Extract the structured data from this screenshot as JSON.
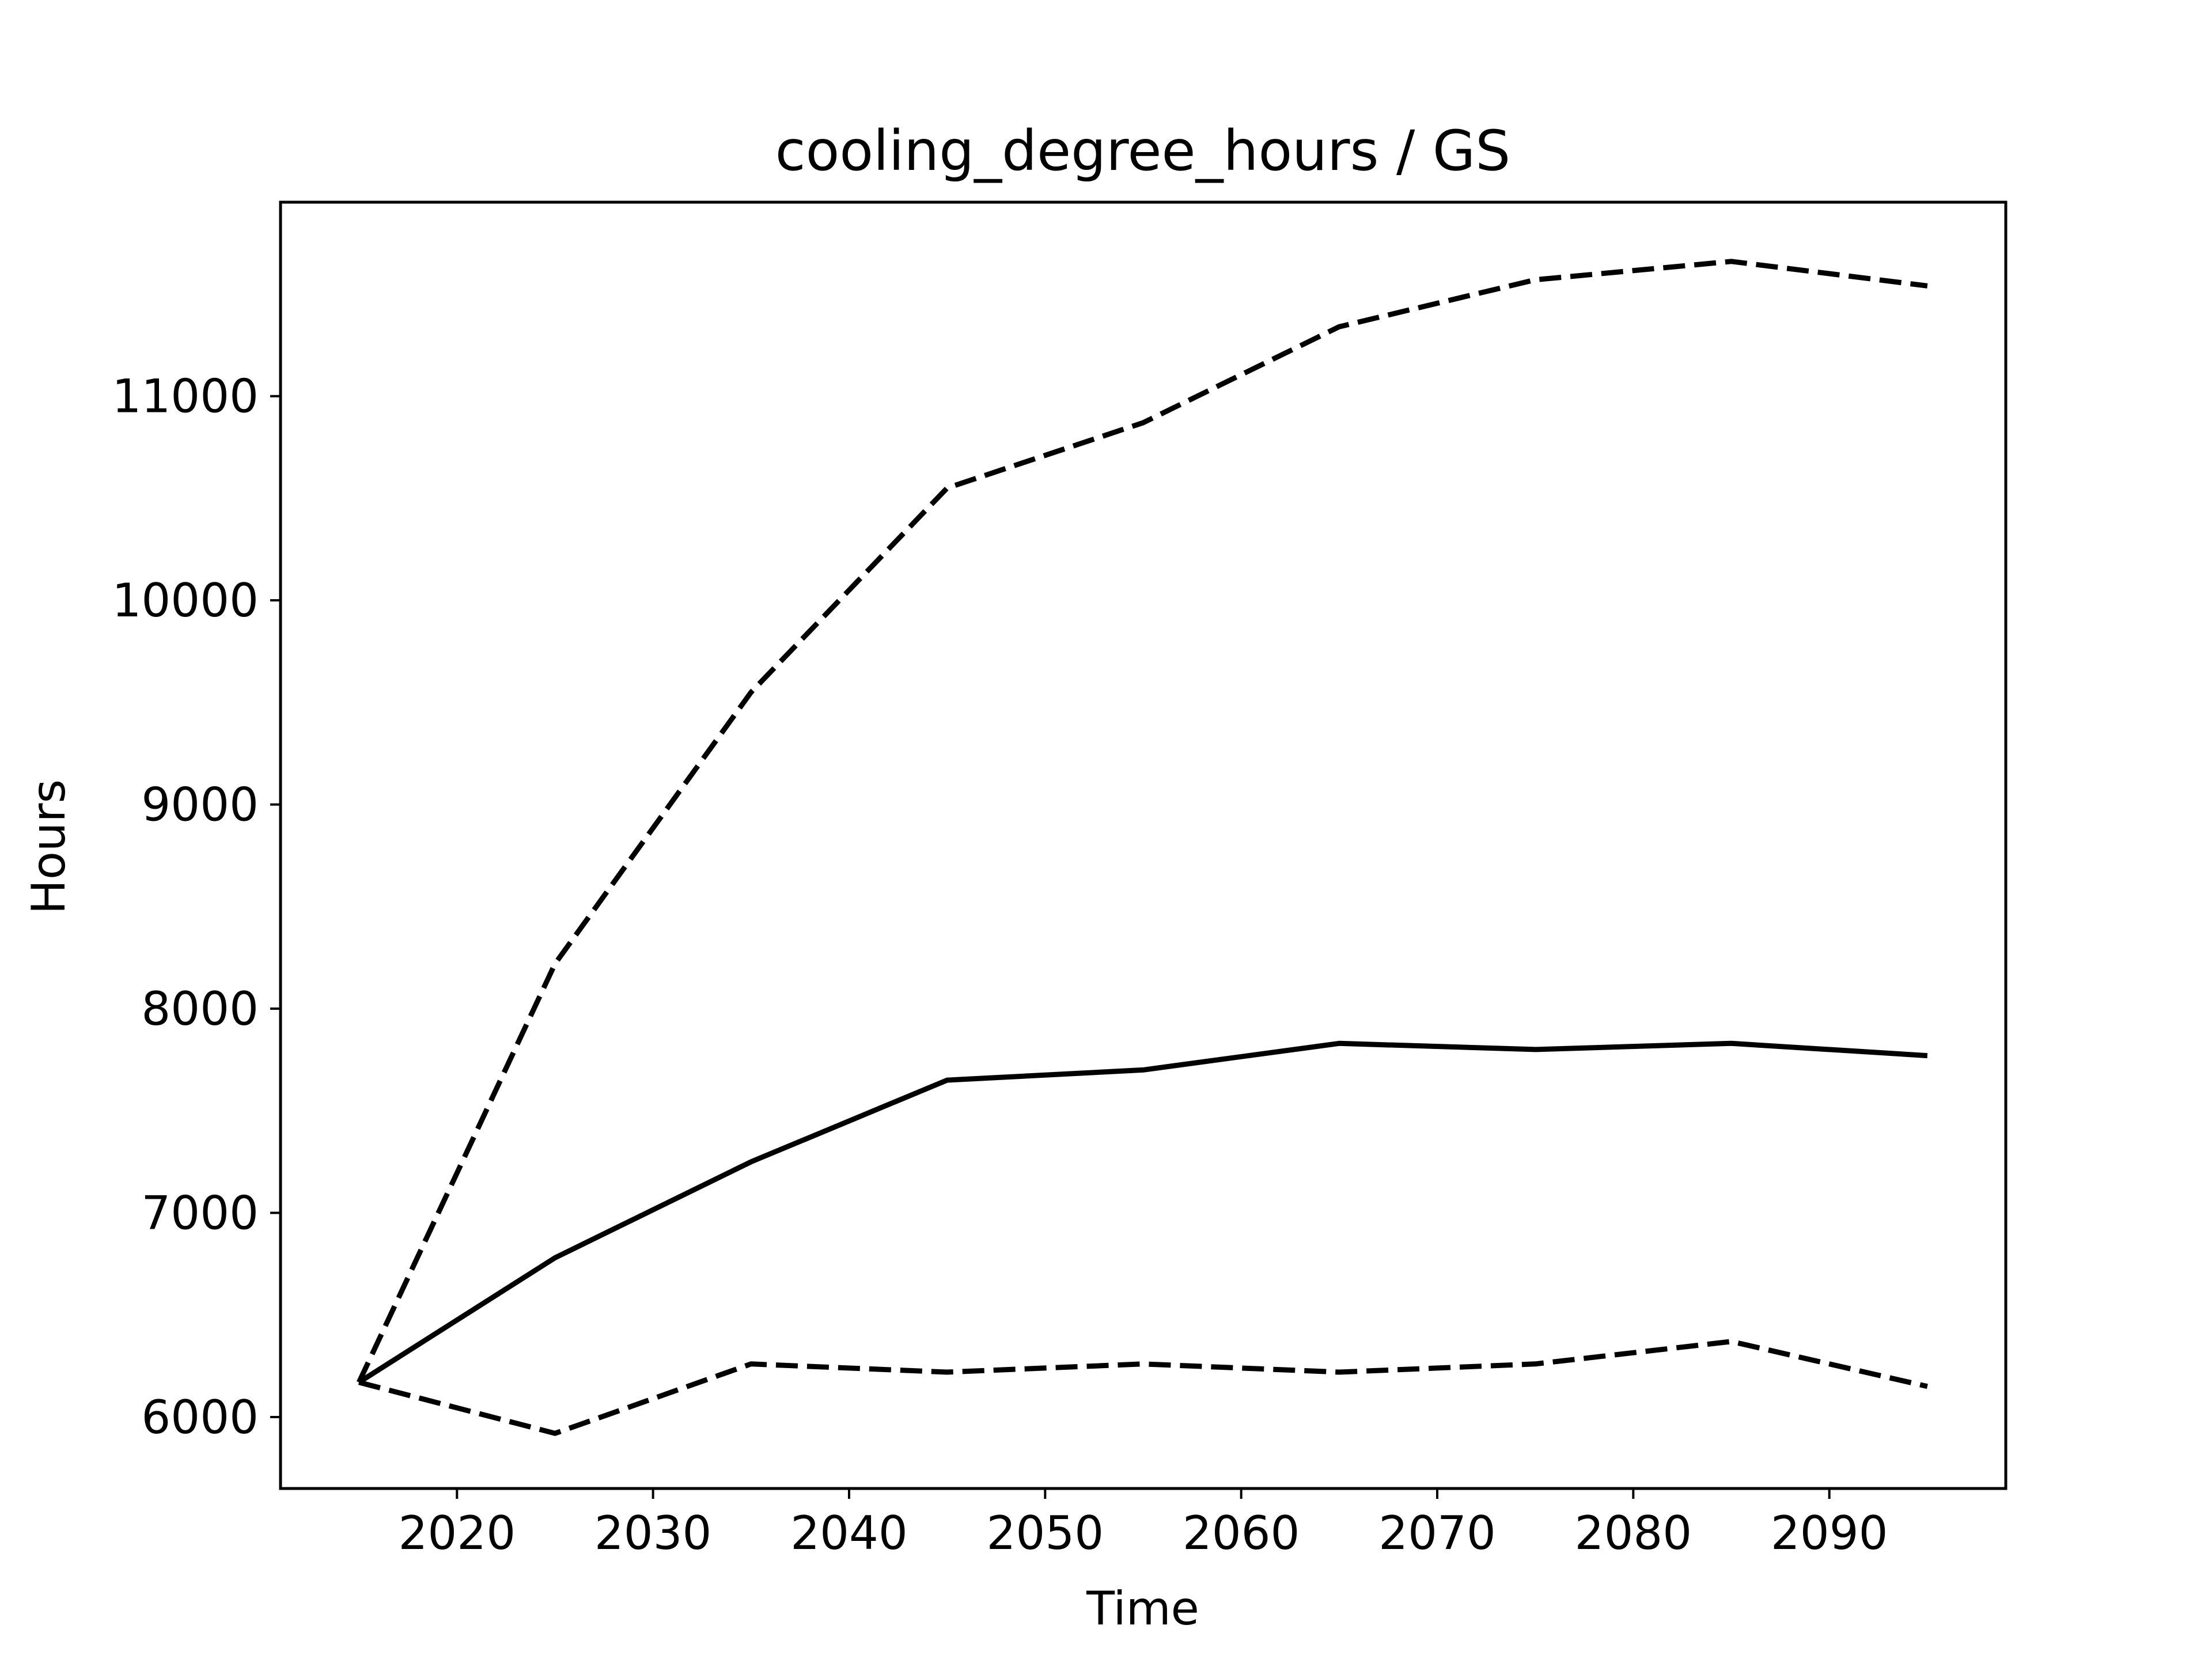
{
  "chart_data": {
    "type": "line",
    "title": "cooling_degree_hours / GS",
    "xlabel": "Time",
    "ylabel": "Hours",
    "xlim": [
      2011,
      2099
    ],
    "ylim": [
      5650,
      11950
    ],
    "xticks": [
      2020,
      2030,
      2040,
      2050,
      2060,
      2070,
      2080,
      2090
    ],
    "yticks": [
      6000,
      7000,
      8000,
      9000,
      10000,
      11000
    ],
    "grid": false,
    "x": [
      2015,
      2025,
      2035,
      2045,
      2055,
      2065,
      2075,
      2085,
      2095
    ],
    "series": [
      {
        "style": "solid",
        "color": "#000000",
        "values": [
          6170,
          6780,
          7250,
          7650,
          7700,
          7830,
          7800,
          7830,
          7770
        ]
      },
      {
        "style": "dashed",
        "color": "#000000",
        "values": [
          6170,
          8220,
          9550,
          10550,
          10870,
          11340,
          11570,
          11660,
          11540
        ]
      },
      {
        "style": "dashed",
        "color": "#000000",
        "values": [
          6170,
          5920,
          6260,
          6220,
          6260,
          6220,
          6260,
          6370,
          6150
        ]
      }
    ]
  }
}
